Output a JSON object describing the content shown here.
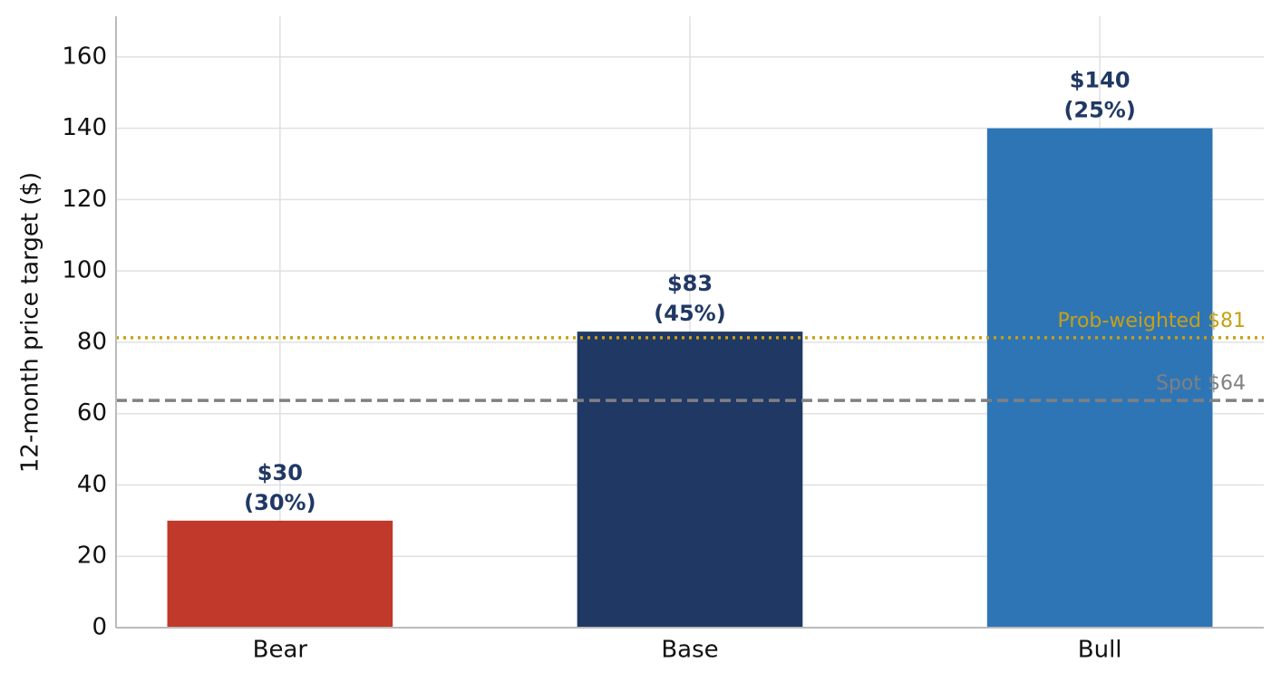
{
  "chart_data": {
    "type": "bar",
    "y_label": "12-month price target ($)",
    "categories": [
      "Bear",
      "Base",
      "Bull"
    ],
    "values": [
      30,
      83,
      140
    ],
    "value_labels": [
      "$30",
      "$83",
      "$140"
    ],
    "probability_labels": [
      "(30%)",
      "(45%)",
      "(25%)"
    ],
    "colors": [
      "#c0392b",
      "#203864",
      "#2e75b6"
    ],
    "label_color": "#203864",
    "ylim": [
      0,
      171.4
    ],
    "yticks": [
      0,
      20,
      40,
      60,
      80,
      100,
      120,
      140,
      160
    ],
    "grid": true,
    "reference_lines": [
      {
        "value": 81.3,
        "label": "Prob-weighted $81",
        "color": "#c8a014",
        "style": "dotted"
      },
      {
        "value": 63.7,
        "label": "Spot $64",
        "color": "#808080",
        "style": "dashed"
      }
    ]
  }
}
